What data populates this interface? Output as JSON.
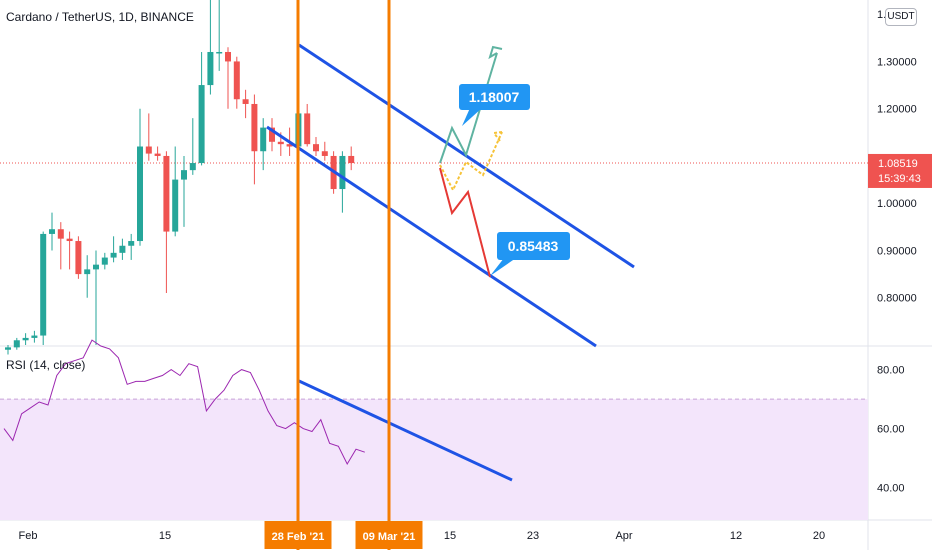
{
  "chart_title": "Cardano / TetherUS, 1D, BINANCE",
  "currency_badge": "USDT",
  "last_price": {
    "value": "1.08519",
    "countdown": "15:39:43",
    "color": "#ef5350"
  },
  "rsi_title": "RSI (14, close)",
  "colors": {
    "up": "#26a69a",
    "down": "#ef5350",
    "channel": "#1e53e5",
    "vline": "#f57c00",
    "rsi_line": "#9c27b0",
    "rsi_band": "#f3e5fb",
    "annotation": "#2196f3",
    "proj_up": "#5fb3a1",
    "proj_mid": "#f6c338",
    "proj_down": "#e53935"
  },
  "chart_data": [
    {
      "type": "candlestick",
      "y_ticks": [
        "0.80000",
        "0.90000",
        "1.00000",
        "1.20000",
        "1.30000",
        "1.40000"
      ],
      "ylim": [
        0.7,
        1.43
      ],
      "x_ticks": [
        "Feb",
        "15",
        "23",
        "Apr",
        "12",
        "20"
      ],
      "highlighted_dates": [
        "28 Feb '21",
        "09 Mar '21"
      ],
      "candles": [
        {
          "o": 0.69,
          "h": 0.7,
          "l": 0.68,
          "c": 0.695
        },
        {
          "o": 0.695,
          "h": 0.715,
          "l": 0.69,
          "c": 0.71
        },
        {
          "o": 0.71,
          "h": 0.725,
          "l": 0.7,
          "c": 0.715
        },
        {
          "o": 0.715,
          "h": 0.73,
          "l": 0.705,
          "c": 0.72
        },
        {
          "o": 0.72,
          "h": 0.94,
          "l": 0.7,
          "c": 0.935
        },
        {
          "o": 0.935,
          "h": 0.98,
          "l": 0.9,
          "c": 0.945
        },
        {
          "o": 0.945,
          "h": 0.96,
          "l": 0.86,
          "c": 0.925
        },
        {
          "o": 0.925,
          "h": 0.94,
          "l": 0.86,
          "c": 0.92
        },
        {
          "o": 0.92,
          "h": 0.93,
          "l": 0.84,
          "c": 0.85
        },
        {
          "o": 0.85,
          "h": 0.89,
          "l": 0.8,
          "c": 0.86
        },
        {
          "o": 0.86,
          "h": 0.9,
          "l": 0.7,
          "c": 0.87
        },
        {
          "o": 0.87,
          "h": 0.895,
          "l": 0.86,
          "c": 0.885
        },
        {
          "o": 0.885,
          "h": 0.93,
          "l": 0.875,
          "c": 0.895
        },
        {
          "o": 0.895,
          "h": 0.925,
          "l": 0.88,
          "c": 0.91
        },
        {
          "o": 0.91,
          "h": 0.935,
          "l": 0.88,
          "c": 0.92
        },
        {
          "o": 0.92,
          "h": 1.2,
          "l": 0.91,
          "c": 1.12
        },
        {
          "o": 1.12,
          "h": 1.19,
          "l": 1.09,
          "c": 1.105
        },
        {
          "o": 1.105,
          "h": 1.12,
          "l": 1.09,
          "c": 1.1
        },
        {
          "o": 1.1,
          "h": 1.11,
          "l": 0.81,
          "c": 0.94
        },
        {
          "o": 0.94,
          "h": 1.12,
          "l": 0.93,
          "c": 1.05
        },
        {
          "o": 1.05,
          "h": 1.1,
          "l": 0.95,
          "c": 1.07
        },
        {
          "o": 1.07,
          "h": 1.18,
          "l": 1.06,
          "c": 1.085
        },
        {
          "o": 1.085,
          "h": 1.32,
          "l": 1.08,
          "c": 1.25
        },
        {
          "o": 1.25,
          "h": 1.45,
          "l": 1.23,
          "c": 1.32
        },
        {
          "o": 1.32,
          "h": 1.47,
          "l": 1.28,
          "c": 1.32
        },
        {
          "o": 1.32,
          "h": 1.33,
          "l": 1.2,
          "c": 1.3
        },
        {
          "o": 1.3,
          "h": 1.31,
          "l": 1.2,
          "c": 1.22
        },
        {
          "o": 1.22,
          "h": 1.24,
          "l": 1.18,
          "c": 1.21
        },
        {
          "o": 1.21,
          "h": 1.23,
          "l": 1.04,
          "c": 1.11
        },
        {
          "o": 1.11,
          "h": 1.18,
          "l": 1.07,
          "c": 1.16
        },
        {
          "o": 1.16,
          "h": 1.18,
          "l": 1.11,
          "c": 1.13
        },
        {
          "o": 1.13,
          "h": 1.15,
          "l": 1.1,
          "c": 1.125
        },
        {
          "o": 1.125,
          "h": 1.16,
          "l": 1.1,
          "c": 1.12
        },
        {
          "o": 1.12,
          "h": 1.19,
          "l": 1.115,
          "c": 1.19
        },
        {
          "o": 1.19,
          "h": 1.21,
          "l": 1.12,
          "c": 1.125
        },
        {
          "o": 1.125,
          "h": 1.14,
          "l": 1.1,
          "c": 1.11
        },
        {
          "o": 1.11,
          "h": 1.13,
          "l": 1.09,
          "c": 1.1
        },
        {
          "o": 1.1,
          "h": 1.11,
          "l": 1.02,
          "c": 1.03
        },
        {
          "o": 1.03,
          "h": 1.11,
          "l": 0.98,
          "c": 1.1
        },
        {
          "o": 1.1,
          "h": 1.12,
          "l": 1.07,
          "c": 1.085
        }
      ],
      "annotations": [
        {
          "label": "1.18007",
          "value": 1.18007
        },
        {
          "label": "0.85483",
          "value": 0.85483
        }
      ]
    },
    {
      "type": "line",
      "name": "RSI (14, close)",
      "y_ticks": [
        "40.00",
        "60.00",
        "80.00"
      ],
      "ylim": [
        29,
        88
      ],
      "band": [
        30,
        70
      ],
      "values": [
        60,
        56,
        65,
        67,
        69,
        68,
        78,
        82,
        83,
        84,
        90,
        88,
        87,
        84,
        75,
        76,
        76,
        77,
        78,
        80,
        78,
        82,
        81,
        66,
        70,
        73,
        78,
        80,
        79,
        73,
        66,
        61,
        60,
        62,
        60,
        59,
        63,
        55,
        54,
        48,
        53,
        52
      ]
    }
  ]
}
